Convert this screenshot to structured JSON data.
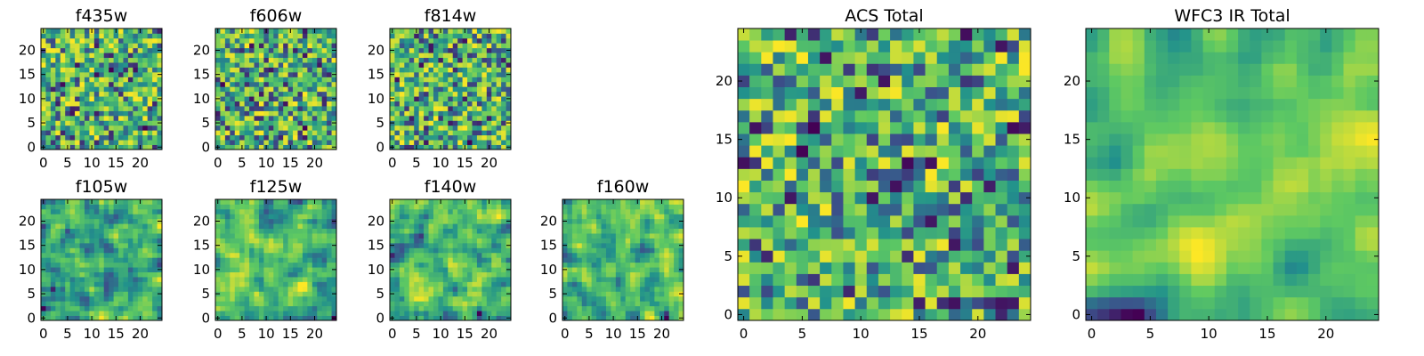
{
  "chart_data": [
    {
      "type": "heatmap",
      "title": "f435w",
      "grid_size": 25,
      "seed": 11,
      "smoothness": 0,
      "xticks": [
        "0",
        "5",
        "10",
        "15",
        "20"
      ],
      "yticks": [
        "0",
        "5",
        "10",
        "15",
        "20"
      ],
      "colormap": "viridis"
    },
    {
      "type": "heatmap",
      "title": "f606w",
      "grid_size": 25,
      "seed": 23,
      "smoothness": 0,
      "xticks": [
        "0",
        "5",
        "10",
        "15",
        "20"
      ],
      "yticks": [
        "0",
        "5",
        "10",
        "15",
        "20"
      ],
      "colormap": "viridis"
    },
    {
      "type": "heatmap",
      "title": "f814w",
      "grid_size": 25,
      "seed": 37,
      "smoothness": 0,
      "xticks": [
        "0",
        "5",
        "10",
        "15",
        "20"
      ],
      "yticks": [
        "0",
        "5",
        "10",
        "15",
        "20"
      ],
      "colormap": "viridis"
    },
    {
      "type": "heatmap",
      "title": "f105w",
      "grid_size": 25,
      "seed": 41,
      "smoothness": 1,
      "xticks": [
        "0",
        "5",
        "10",
        "15",
        "20"
      ],
      "yticks": [
        "0",
        "5",
        "10",
        "15",
        "20"
      ],
      "colormap": "viridis"
    },
    {
      "type": "heatmap",
      "title": "f125w",
      "grid_size": 25,
      "seed": 53,
      "smoothness": 1,
      "xticks": [
        "0",
        "5",
        "10",
        "15",
        "20"
      ],
      "yticks": [
        "0",
        "5",
        "10",
        "15",
        "20"
      ],
      "colormap": "viridis"
    },
    {
      "type": "heatmap",
      "title": "f140w",
      "grid_size": 25,
      "seed": 67,
      "smoothness": 1,
      "xticks": [
        "0",
        "5",
        "10",
        "15",
        "20"
      ],
      "yticks": [
        "0",
        "5",
        "10",
        "15",
        "20"
      ],
      "colormap": "viridis"
    },
    {
      "type": "heatmap",
      "title": "f160w",
      "grid_size": 25,
      "seed": 79,
      "smoothness": 1,
      "xticks": [
        "0",
        "5",
        "10",
        "15",
        "20"
      ],
      "yticks": [
        "0",
        "5",
        "10",
        "15",
        "20"
      ],
      "colormap": "viridis"
    },
    {
      "type": "heatmap",
      "title": "ACS Total",
      "grid_size": 25,
      "seed": 83,
      "smoothness": 0,
      "xticks": [
        "0",
        "5",
        "10",
        "15",
        "20"
      ],
      "yticks": [
        "0",
        "5",
        "10",
        "15",
        "20"
      ],
      "colormap": "viridis"
    },
    {
      "type": "heatmap",
      "title": "WFC3 IR Total",
      "grid_size": 25,
      "seed": 97,
      "smoothness": 2,
      "xticks": [
        "0",
        "5",
        "10",
        "15",
        "20"
      ],
      "yticks": [
        "0",
        "5",
        "10",
        "15",
        "20"
      ],
      "colormap": "viridis"
    }
  ],
  "colors": {
    "viridis": [
      "#440154",
      "#3b528b",
      "#21918c",
      "#5ec962",
      "#fde725"
    ]
  }
}
